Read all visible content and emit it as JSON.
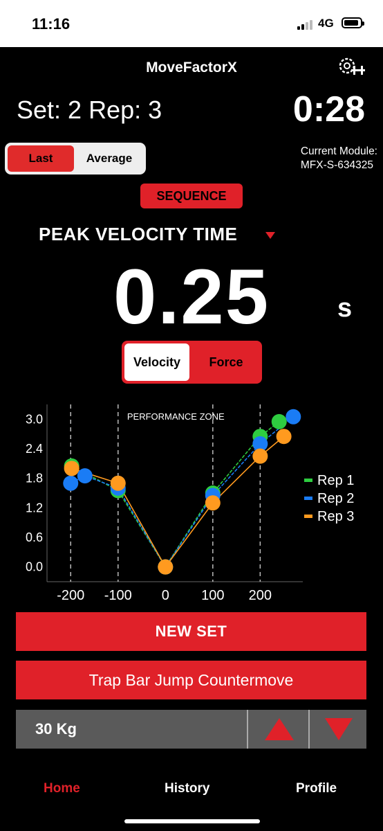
{
  "status_bar": {
    "time": "11:16",
    "network": "4G"
  },
  "header": {
    "app_title": "MoveFactorX",
    "set_rep": "Set: 2 Rep: 3",
    "timer": "0:28"
  },
  "mode_toggle": {
    "last": "Last",
    "average": "Average",
    "selected": "Last"
  },
  "module": {
    "label": "Current Module:",
    "id": "MFX-S-634325"
  },
  "sequence_button": "SEQUENCE",
  "metric": {
    "name": "PEAK VELOCITY TIME",
    "value": "0.25",
    "unit": "s"
  },
  "view_toggle": {
    "velocity": "Velocity",
    "force": "Force",
    "selected": "Velocity"
  },
  "colors": {
    "accent": "#e02129",
    "rep1": "#2ecc40",
    "rep2": "#1a7cf5",
    "rep3": "#ff9a1f"
  },
  "chart_data": {
    "type": "line",
    "annotation": "PERFORMANCE ZONE",
    "xlim": [
      -250,
      290
    ],
    "ylim": [
      -0.3,
      3.3
    ],
    "xticks": [
      "-200",
      "-100",
      "0",
      "100",
      "200"
    ],
    "yticks": [
      "3.0",
      "2.4",
      "1.8",
      "1.2",
      "0.6",
      "0.0"
    ],
    "zone_lines_x": [
      -200,
      -100,
      100,
      200
    ],
    "series": [
      {
        "name": "Rep 1",
        "x": [
          -198,
          -100,
          0,
          100,
          200,
          240
        ],
        "y": [
          2.05,
          1.55,
          0.0,
          1.5,
          2.65,
          2.95
        ]
      },
      {
        "name": "Rep 2",
        "x": [
          -200,
          -170,
          -100,
          0,
          100,
          200,
          270
        ],
        "y": [
          1.7,
          1.85,
          1.6,
          0.0,
          1.45,
          2.5,
          3.05
        ]
      },
      {
        "name": "Rep 3",
        "x": [
          -198,
          -100,
          0,
          100,
          200,
          250
        ],
        "y": [
          2.0,
          1.7,
          0.0,
          1.3,
          2.25,
          2.65
        ]
      }
    ]
  },
  "actions": {
    "new_set": "NEW SET",
    "exercise": "Trap Bar Jump Countermove"
  },
  "weight": {
    "label": "30 Kg"
  },
  "tabs": [
    {
      "label": "Home"
    },
    {
      "label": "History"
    },
    {
      "label": "Profile"
    }
  ]
}
